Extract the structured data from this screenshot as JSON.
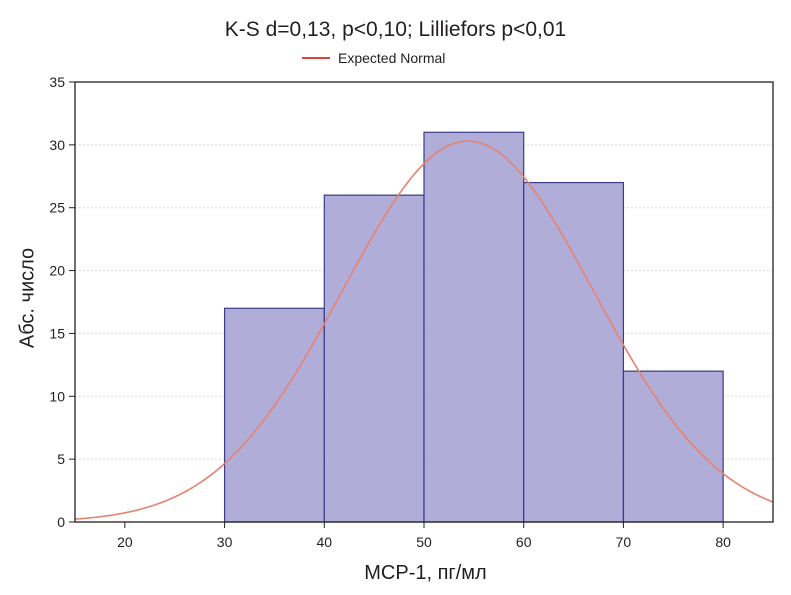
{
  "chart_data": {
    "type": "bar",
    "title": "K-S d=0,13, p<0,10; Lilliefors p<0,01",
    "xlabel": "MCP-1, пг/мл",
    "ylabel": "Абс. число",
    "legend": {
      "label": "Expected Normal",
      "placement": "top-center"
    },
    "xlim": [
      15,
      85
    ],
    "ylim": [
      0,
      35
    ],
    "xticks": [
      20,
      30,
      40,
      50,
      60,
      70,
      80
    ],
    "yticks": [
      0,
      5,
      10,
      15,
      20,
      25,
      30,
      35
    ],
    "grid": true,
    "bins": [
      {
        "from": 30,
        "to": 40,
        "value": 17
      },
      {
        "from": 40,
        "to": 50,
        "value": 26
      },
      {
        "from": 50,
        "to": 60,
        "value": 31
      },
      {
        "from": 60,
        "to": 70,
        "value": 27
      },
      {
        "from": 70,
        "to": 80,
        "value": 12
      }
    ],
    "normal_curve": {
      "name": "Expected Normal",
      "mean": 54.4,
      "sd": 12.6,
      "peak": 30.3
    }
  },
  "colors": {
    "bar_fill": "#a9a6d6",
    "bar_edge": "#3b3b8a",
    "curve": "#e8826f",
    "legend_line": "#d9443c",
    "grid": "#d9d9d9",
    "axis": "#231f20"
  }
}
